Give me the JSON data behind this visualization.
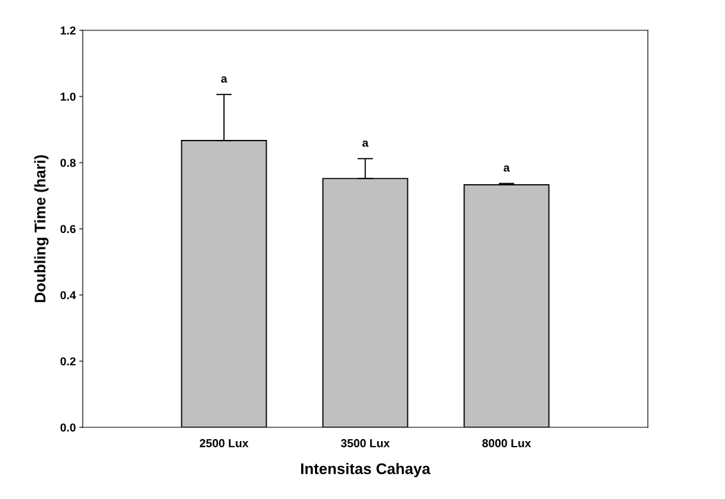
{
  "chart_data": {
    "type": "bar",
    "xlabel": "Intensitas Cahaya",
    "ylabel": "Doubling Time (hari)",
    "categories": [
      "2500 Lux",
      "3500 Lux",
      "8000 Lux"
    ],
    "values": [
      0.867,
      0.752,
      0.733
    ],
    "errors": [
      [
        0.867,
        1.006
      ],
      [
        0.752,
        0.812
      ],
      [
        0.733,
        0.737
      ]
    ],
    "color": "#c0c0c0",
    "ylim": [
      0,
      1.2
    ],
    "yticks": [
      {
        "value": 0,
        "label": "0.0"
      },
      0.2,
      0.4,
      0.6,
      0.8,
      {
        "value": 1,
        "label": "1.0"
      },
      1.2
    ],
    "annotations": [
      "a",
      "a",
      "a"
    ],
    "grid": false,
    "legend": false
  }
}
